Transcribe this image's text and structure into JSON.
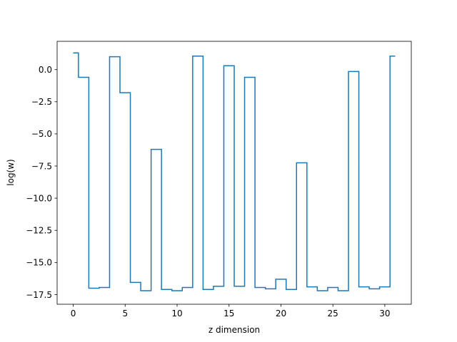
{
  "chart_data": {
    "type": "line",
    "drawstyle": "steps-mid",
    "title": "",
    "xlabel": "z dimension",
    "ylabel": "log(w)",
    "xlim": [
      -1.55,
      32.55
    ],
    "ylim": [
      -18.25,
      2.2
    ],
    "xticks": [
      0,
      5,
      10,
      15,
      20,
      25,
      30
    ],
    "xtick_labels": [
      "0",
      "5",
      "10",
      "15",
      "20",
      "25",
      "30"
    ],
    "yticks": [
      0.0,
      -2.5,
      -5.0,
      -7.5,
      -10.0,
      -12.5,
      -15.0,
      -17.5
    ],
    "ytick_labels": [
      "0.0",
      "−2.5",
      "−5.0",
      "−7.5",
      "−10.0",
      "−12.5",
      "−15.0",
      "−17.5"
    ],
    "grid": false,
    "line_color": "#1f77b4",
    "series": [
      {
        "name": "",
        "x": [
          0,
          1,
          2,
          3,
          4,
          5,
          6,
          7,
          8,
          9,
          10,
          11,
          12,
          13,
          14,
          15,
          16,
          17,
          18,
          19,
          20,
          21,
          22,
          23,
          24,
          25,
          26,
          27,
          28,
          29,
          30,
          31
        ],
        "y": [
          1.3,
          -0.6,
          -17.0,
          -16.95,
          1.0,
          -1.8,
          -16.55,
          -17.2,
          -6.2,
          -17.1,
          -17.2,
          -16.95,
          1.05,
          -17.1,
          -16.85,
          0.3,
          -16.85,
          -0.6,
          -16.95,
          -17.05,
          -16.3,
          -17.1,
          -7.25,
          -16.9,
          -17.2,
          -16.95,
          -17.2,
          -0.15,
          -16.9,
          -17.05,
          -16.9,
          1.05
        ]
      }
    ]
  }
}
